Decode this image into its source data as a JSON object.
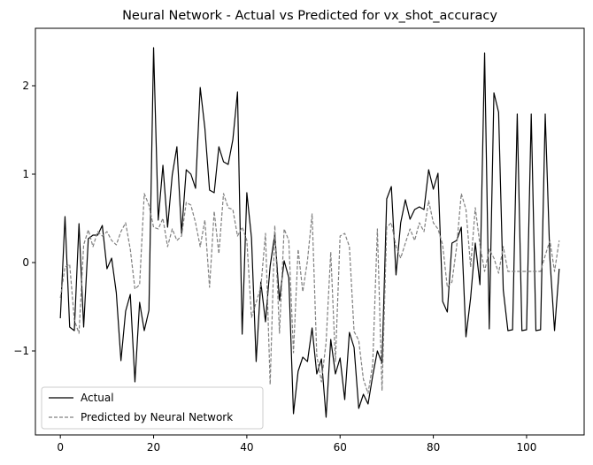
{
  "chart_data": {
    "type": "line",
    "title": "Neural Network - Actual vs Predicted for vx_shot_accuracy",
    "xlabel": "",
    "ylabel": "",
    "xlim": [
      -5.35,
      112.35
    ],
    "ylim": [
      -1.95,
      2.65
    ],
    "xticks": [
      0,
      20,
      40,
      60,
      80,
      100
    ],
    "yticks": [
      -1,
      0,
      1,
      2
    ],
    "ytick_labels": [
      "−1",
      "0",
      "1",
      "2"
    ],
    "grid": false,
    "legend_position": "lower-left",
    "series": [
      {
        "name": "Actual",
        "color": "#000000",
        "style": "solid",
        "x": [
          0,
          1,
          2,
          3,
          4,
          5,
          6,
          7,
          8,
          9,
          10,
          11,
          12,
          13,
          14,
          15,
          16,
          17,
          18,
          19,
          20,
          21,
          22,
          23,
          24,
          25,
          26,
          27,
          28,
          29,
          30,
          31,
          32,
          33,
          34,
          35,
          36,
          37,
          38,
          39,
          40,
          41,
          42,
          43,
          44,
          45,
          46,
          47,
          48,
          49,
          50,
          51,
          52,
          53,
          54,
          55,
          56,
          57,
          58,
          59,
          60,
          61,
          62,
          63,
          64,
          65,
          66,
          67,
          68,
          69,
          70,
          71,
          72,
          73,
          74,
          75,
          76,
          77,
          78,
          79,
          80,
          81,
          82,
          83,
          84,
          85,
          86,
          87,
          88,
          89,
          90,
          91,
          92,
          93,
          94,
          95,
          96,
          97,
          98,
          99,
          100,
          101,
          102,
          103,
          104,
          105,
          106,
          107
        ],
        "y": [
          -0.63,
          0.52,
          -0.73,
          -0.77,
          0.44,
          -0.73,
          0.27,
          0.31,
          0.31,
          0.42,
          -0.07,
          0.05,
          -0.34,
          -1.11,
          -0.55,
          -0.36,
          -1.35,
          -0.45,
          -0.77,
          -0.54,
          2.43,
          0.48,
          1.1,
          0.4,
          0.99,
          1.31,
          0.33,
          1.05,
          1.0,
          0.84,
          1.98,
          1.52,
          0.82,
          0.79,
          1.31,
          1.14,
          1.11,
          1.39,
          1.93,
          -0.81,
          0.79,
          0.28,
          -1.12,
          -0.22,
          -0.67,
          -0.04,
          0.32,
          -0.43,
          0.02,
          -0.17,
          -1.71,
          -1.23,
          -1.07,
          -1.12,
          -0.74,
          -1.26,
          -1.09,
          -1.75,
          -0.87,
          -1.26,
          -1.08,
          -1.55,
          -0.79,
          -0.96,
          -1.65,
          -1.49,
          -1.6,
          -1.28,
          -1.0,
          -1.14,
          0.72,
          0.86,
          -0.14,
          0.45,
          0.71,
          0.49,
          0.6,
          0.63,
          0.6,
          1.05,
          0.83,
          1.01,
          -0.44,
          -0.56,
          0.22,
          0.25,
          0.4,
          -0.84,
          -0.4,
          0.22,
          -0.25,
          2.37,
          -0.75,
          1.92,
          1.7,
          -0.31,
          -0.77,
          -0.76,
          1.68,
          -0.77,
          -0.76,
          1.68,
          -0.77,
          -0.76,
          1.68,
          0.05,
          -0.77,
          -0.07
        ]
      },
      {
        "name": "Predicted by Neural Network",
        "color": "#808080",
        "style": "dashed",
        "x": [
          0,
          1,
          2,
          3,
          4,
          5,
          6,
          7,
          8,
          9,
          10,
          11,
          12,
          13,
          14,
          15,
          16,
          17,
          18,
          19,
          20,
          21,
          22,
          23,
          24,
          25,
          26,
          27,
          28,
          29,
          30,
          31,
          32,
          33,
          34,
          35,
          36,
          37,
          38,
          39,
          40,
          41,
          42,
          43,
          44,
          45,
          46,
          47,
          48,
          49,
          50,
          51,
          52,
          53,
          54,
          55,
          56,
          57,
          58,
          59,
          60,
          61,
          62,
          63,
          64,
          65,
          66,
          67,
          68,
          69,
          70,
          71,
          72,
          73,
          74,
          75,
          76,
          77,
          78,
          79,
          80,
          81,
          82,
          83,
          84,
          85,
          86,
          87,
          88,
          89,
          90,
          91,
          92,
          93,
          94,
          95,
          96,
          97,
          98,
          99,
          100,
          101,
          102,
          103,
          104,
          105,
          106,
          107
        ],
        "y": [
          -0.4,
          -0.05,
          -0.02,
          -0.65,
          -0.8,
          0.2,
          0.37,
          0.18,
          0.35,
          0.3,
          0.35,
          0.25,
          0.2,
          0.35,
          0.45,
          0.15,
          -0.3,
          -0.25,
          0.78,
          0.65,
          0.4,
          0.38,
          0.5,
          0.18,
          0.38,
          0.25,
          0.3,
          0.68,
          0.65,
          0.45,
          0.18,
          0.48,
          -0.28,
          0.58,
          0.1,
          0.78,
          0.62,
          0.6,
          0.3,
          0.4,
          0.25,
          -0.62,
          -0.45,
          -0.28,
          0.33,
          -1.38,
          0.42,
          -0.8,
          0.38,
          0.25,
          -1.02,
          0.15,
          -0.33,
          0.02,
          0.55,
          -1.05,
          -1.35,
          -0.9,
          0.12,
          -1.12,
          0.3,
          0.33,
          0.18,
          -0.78,
          -0.88,
          -1.32,
          -1.48,
          -1.15,
          0.38,
          -1.45,
          0.4,
          0.45,
          0.18,
          0.05,
          0.22,
          0.38,
          0.25,
          0.45,
          0.35,
          0.7,
          0.45,
          0.38,
          0.2,
          -0.28,
          -0.22,
          0.18,
          0.78,
          0.6,
          -0.05,
          0.62,
          0.2,
          -0.1,
          0.15,
          0.05,
          -0.12,
          0.18,
          -0.1,
          -0.1,
          -0.1,
          -0.1,
          -0.1,
          -0.1,
          -0.1,
          -0.1,
          0.08,
          0.25,
          -0.1,
          0.25
        ]
      }
    ]
  }
}
